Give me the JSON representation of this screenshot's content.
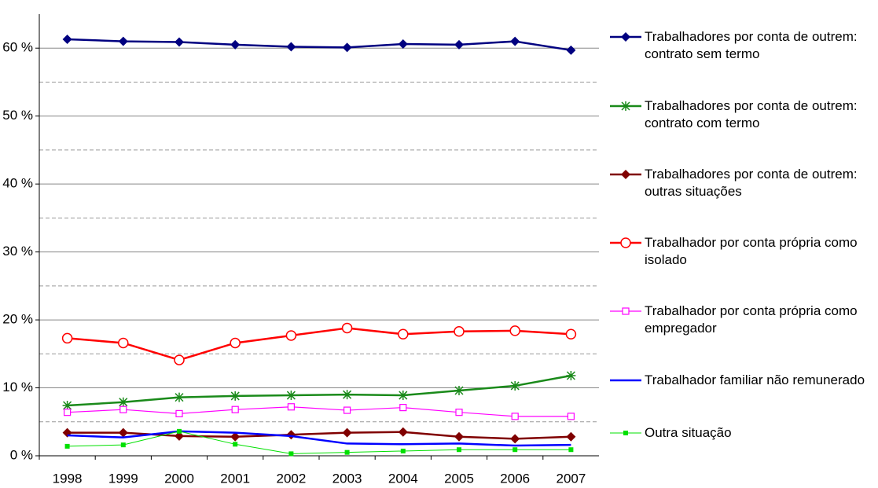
{
  "chart_data": {
    "type": "line",
    "categories": [
      "1998",
      "1999",
      "2000",
      "2001",
      "2002",
      "2003",
      "2004",
      "2005",
      "2006",
      "2007"
    ],
    "ylim": [
      0,
      65
    ],
    "yticks": [
      {
        "value": 0,
        "label": "0 %"
      },
      {
        "value": 10,
        "label": "10 %"
      },
      {
        "value": 20,
        "label": "20 %"
      },
      {
        "value": 30,
        "label": "30 %"
      },
      {
        "value": 40,
        "label": "40 %"
      },
      {
        "value": 50,
        "label": "50 %"
      },
      {
        "value": 60,
        "label": "60 %"
      }
    ],
    "minor_gridlines": [
      5,
      15,
      25,
      35,
      45,
      55
    ],
    "grid": true,
    "legend": "right",
    "series": [
      {
        "name": "Trabalhadores por conta de outrem: contrato sem termo",
        "color": "#000080",
        "marker": "diamond",
        "line_width": 2.5,
        "values": [
          61.3,
          61.0,
          60.9,
          60.5,
          60.2,
          60.1,
          60.6,
          60.5,
          61.0,
          59.7
        ]
      },
      {
        "name": "Trabalhadores por conta de outrem: contrato com termo",
        "color": "#1a8a1a",
        "marker": "star",
        "line_width": 2.5,
        "values": [
          7.4,
          7.9,
          8.6,
          8.8,
          8.9,
          9.0,
          8.9,
          9.6,
          10.3,
          11.8
        ]
      },
      {
        "name": "Trabalhadores por conta de outrem: outras situações",
        "color": "#800000",
        "marker": "diamond",
        "line_width": 2.5,
        "values": [
          3.4,
          3.4,
          2.9,
          2.8,
          3.1,
          3.4,
          3.5,
          2.8,
          2.5,
          2.8
        ]
      },
      {
        "name": "Trabalhador por conta própria como isolado",
        "color": "#ff0000",
        "marker": "circle",
        "line_width": 2.5,
        "values": [
          17.3,
          16.6,
          14.1,
          16.6,
          17.7,
          18.8,
          17.9,
          18.3,
          18.4,
          17.9
        ]
      },
      {
        "name": "Trabalhador por conta própria como empregador",
        "color": "#ff00ff",
        "marker": "square",
        "line_width": 1.2,
        "values": [
          6.4,
          6.8,
          6.2,
          6.8,
          7.2,
          6.7,
          7.1,
          6.4,
          5.8,
          5.8
        ]
      },
      {
        "name": "Trabalhador familiar não remunerado",
        "color": "#0000ff",
        "marker": "none",
        "line_width": 2.5,
        "values": [
          3.0,
          2.7,
          3.6,
          3.4,
          2.9,
          1.8,
          1.7,
          1.8,
          1.5,
          1.6
        ]
      },
      {
        "name": "Outra situação",
        "color": "#00e000",
        "marker": "smallsquare",
        "line_width": 1,
        "values": [
          1.4,
          1.6,
          3.6,
          1.7,
          0.3,
          0.5,
          0.7,
          0.9,
          0.9,
          0.9
        ]
      }
    ]
  }
}
